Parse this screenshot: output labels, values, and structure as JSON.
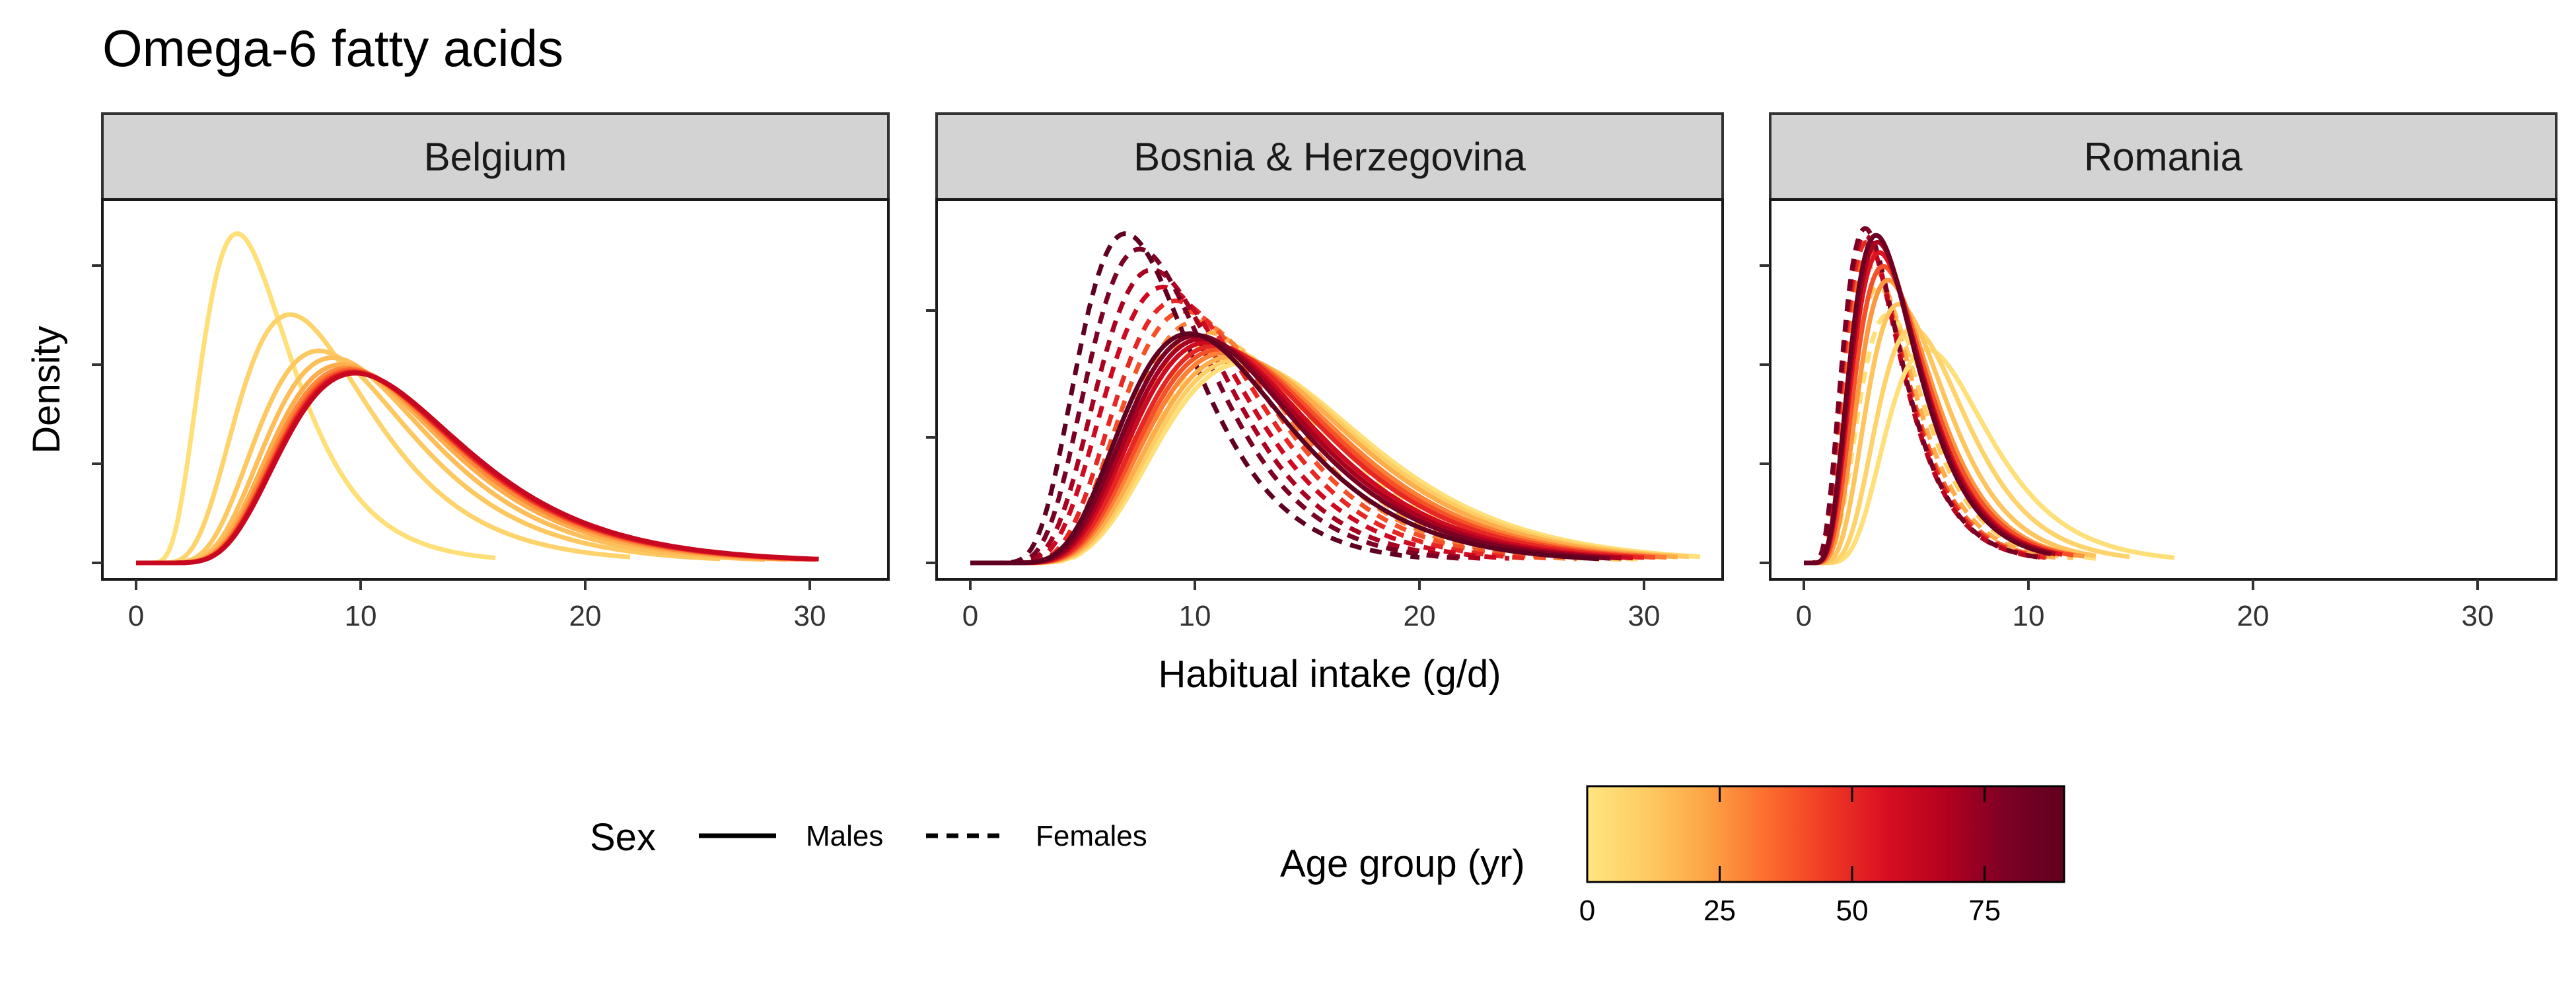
{
  "chart_data": {
    "type": "line",
    "title": "Omega-6 fatty acids",
    "xlabel": "Habitual intake (g/d)",
    "ylabel": "Density",
    "xlim": [
      -1.5,
      33.5
    ],
    "x_ticks": [
      0,
      10,
      20,
      30
    ],
    "facets": [
      "Belgium",
      "Bosnia & Herzegovina",
      "Romania"
    ],
    "grid": false,
    "legend": {
      "sex_title": "Sex",
      "sex_items": [
        {
          "label": "Males",
          "linetype": "solid"
        },
        {
          "label": "Females",
          "linetype": "dashed"
        }
      ],
      "age_title": "Age group (yr)",
      "age_ticks": [
        0,
        25,
        50,
        75
      ],
      "age_range": [
        0,
        90
      ],
      "age_colors": [
        "#ffe680",
        "#fecb62",
        "#fda446",
        "#fc6e2e",
        "#f03a24",
        "#d90f22",
        "#b5011f",
        "#7d0025",
        "#600020"
      ],
      "position": "bottom"
    },
    "series": [
      {
        "facet": "Belgium",
        "sex": "Males",
        "age": 3,
        "mean": 6.0,
        "sd": 1.55,
        "xmax": 16.0,
        "rel_peak": 0.955
      },
      {
        "facet": "Belgium",
        "sex": "Males",
        "age": 8,
        "mean": 9.0,
        "sd": 1.53,
        "xmax": 22.0,
        "rel_peak": 0.72
      },
      {
        "facet": "Belgium",
        "sex": "Males",
        "age": 12,
        "mean": 10.5,
        "sd": 1.51,
        "xmax": 26.0,
        "rel_peak": 0.615
      },
      {
        "facet": "Belgium",
        "sex": "Males",
        "age": 15,
        "mean": 11.2,
        "sd": 1.5,
        "xmax": 28.0,
        "rel_peak": 0.595
      },
      {
        "facet": "Belgium",
        "sex": "Males",
        "age": 20,
        "mean": 11.7,
        "sd": 1.5,
        "xmax": 29.0,
        "rel_peak": 0.575
      },
      {
        "facet": "Belgium",
        "sex": "Males",
        "age": 28,
        "mean": 12.0,
        "sd": 1.5,
        "xmax": 29.5,
        "rel_peak": 0.565
      },
      {
        "facet": "Belgium",
        "sex": "Males",
        "age": 35,
        "mean": 12.2,
        "sd": 1.5,
        "xmax": 30.0,
        "rel_peak": 0.56
      },
      {
        "facet": "Belgium",
        "sex": "Males",
        "age": 45,
        "mean": 12.3,
        "sd": 1.5,
        "xmax": 30.2,
        "rel_peak": 0.555
      },
      {
        "facet": "Belgium",
        "sex": "Males",
        "age": 55,
        "mean": 12.4,
        "sd": 1.5,
        "xmax": 30.3,
        "rel_peak": 0.552
      },
      {
        "facet": "Belgium",
        "sex": "Males",
        "age": 62,
        "mean": 12.5,
        "sd": 1.5,
        "xmax": 30.4,
        "rel_peak": 0.55
      },
      {
        "facet": "Bosnia & Herzegovina",
        "sex": "Males",
        "age": 3,
        "mean": 15.0,
        "sd": 1.45,
        "xmax": 32.5,
        "rel_peak": 0.58
      },
      {
        "facet": "Bosnia & Herzegovina",
        "sex": "Males",
        "age": 10,
        "mean": 14.7,
        "sd": 1.45,
        "xmax": 32.0,
        "rel_peak": 0.59
      },
      {
        "facet": "Bosnia & Herzegovina",
        "sex": "Males",
        "age": 20,
        "mean": 14.4,
        "sd": 1.45,
        "xmax": 31.5,
        "rel_peak": 0.6
      },
      {
        "facet": "Bosnia & Herzegovina",
        "sex": "Males",
        "age": 30,
        "mean": 14.0,
        "sd": 1.45,
        "xmax": 31.0,
        "rel_peak": 0.61
      },
      {
        "facet": "Bosnia & Herzegovina",
        "sex": "Males",
        "age": 40,
        "mean": 13.7,
        "sd": 1.45,
        "xmax": 30.5,
        "rel_peak": 0.62
      },
      {
        "facet": "Bosnia & Herzegovina",
        "sex": "Males",
        "age": 50,
        "mean": 13.4,
        "sd": 1.45,
        "xmax": 30.0,
        "rel_peak": 0.63
      },
      {
        "facet": "Bosnia & Herzegovina",
        "sex": "Males",
        "age": 60,
        "mean": 13.0,
        "sd": 1.45,
        "xmax": 29.5,
        "rel_peak": 0.64
      },
      {
        "facet": "Bosnia & Herzegovina",
        "sex": "Males",
        "age": 70,
        "mean": 12.7,
        "sd": 1.45,
        "xmax": 29.0,
        "rel_peak": 0.65
      },
      {
        "facet": "Bosnia & Herzegovina",
        "sex": "Males",
        "age": 80,
        "mean": 12.4,
        "sd": 1.45,
        "xmax": 28.5,
        "rel_peak": 0.66
      },
      {
        "facet": "Bosnia & Herzegovina",
        "sex": "Males",
        "age": 90,
        "mean": 12.0,
        "sd": 1.45,
        "xmax": 28.0,
        "rel_peak": 0.665
      },
      {
        "facet": "Bosnia & Herzegovina",
        "sex": "Females",
        "age": 3,
        "mean": 13.5,
        "sd": 1.4,
        "xmax": 30.0,
        "rel_peak": 0.62
      },
      {
        "facet": "Bosnia & Herzegovina",
        "sex": "Females",
        "age": 10,
        "mean": 13.0,
        "sd": 1.4,
        "xmax": 29.0,
        "rel_peak": 0.645
      },
      {
        "facet": "Bosnia & Herzegovina",
        "sex": "Females",
        "age": 20,
        "mean": 12.5,
        "sd": 1.41,
        "xmax": 28.0,
        "rel_peak": 0.67
      },
      {
        "facet": "Bosnia & Herzegovina",
        "sex": "Females",
        "age": 30,
        "mean": 12.0,
        "sd": 1.41,
        "xmax": 27.0,
        "rel_peak": 0.7
      },
      {
        "facet": "Bosnia & Herzegovina",
        "sex": "Females",
        "age": 40,
        "mean": 11.5,
        "sd": 1.42,
        "xmax": 26.0,
        "rel_peak": 0.73
      },
      {
        "facet": "Bosnia & Herzegovina",
        "sex": "Females",
        "age": 50,
        "mean": 11.0,
        "sd": 1.42,
        "xmax": 25.0,
        "rel_peak": 0.76
      },
      {
        "facet": "Bosnia & Herzegovina",
        "sex": "Females",
        "age": 60,
        "mean": 10.4,
        "sd": 1.43,
        "xmax": 24.0,
        "rel_peak": 0.8
      },
      {
        "facet": "Bosnia & Herzegovina",
        "sex": "Females",
        "age": 70,
        "mean": 9.8,
        "sd": 1.43,
        "xmax": 23.0,
        "rel_peak": 0.85
      },
      {
        "facet": "Bosnia & Herzegovina",
        "sex": "Females",
        "age": 80,
        "mean": 9.2,
        "sd": 1.44,
        "xmax": 22.0,
        "rel_peak": 0.91
      },
      {
        "facet": "Bosnia & Herzegovina",
        "sex": "Females",
        "age": 90,
        "mean": 8.5,
        "sd": 1.45,
        "xmax": 20.0,
        "rel_peak": 0.955
      },
      {
        "facet": "Romania",
        "sex": "Males",
        "age": 3,
        "mean": 7.0,
        "sd": 1.5,
        "xmax": 16.5,
        "rel_peak": 0.62
      },
      {
        "facet": "Romania",
        "sex": "Males",
        "age": 8,
        "mean": 6.2,
        "sd": 1.5,
        "xmax": 14.5,
        "rel_peak": 0.68
      },
      {
        "facet": "Romania",
        "sex": "Males",
        "age": 13,
        "mean": 5.5,
        "sd": 1.52,
        "xmax": 13.0,
        "rel_peak": 0.75
      },
      {
        "facet": "Romania",
        "sex": "Males",
        "age": 25,
        "mean": 5.0,
        "sd": 1.55,
        "xmax": 12.5,
        "rel_peak": 0.82
      },
      {
        "facet": "Romania",
        "sex": "Males",
        "age": 40,
        "mean": 4.8,
        "sd": 1.57,
        "xmax": 12.0,
        "rel_peak": 0.86
      },
      {
        "facet": "Romania",
        "sex": "Males",
        "age": 55,
        "mean": 4.6,
        "sd": 1.58,
        "xmax": 11.5,
        "rel_peak": 0.9
      },
      {
        "facet": "Romania",
        "sex": "Males",
        "age": 70,
        "mean": 4.5,
        "sd": 1.58,
        "xmax": 11.2,
        "rel_peak": 0.93
      },
      {
        "facet": "Romania",
        "sex": "Males",
        "age": 85,
        "mean": 4.4,
        "sd": 1.58,
        "xmax": 11.0,
        "rel_peak": 0.95
      },
      {
        "facet": "Romania",
        "sex": "Females",
        "age": 3,
        "mean": 5.0,
        "sd": 1.55,
        "xmax": 13.0,
        "rel_peak": 0.72
      },
      {
        "facet": "Romania",
        "sex": "Females",
        "age": 10,
        "mean": 4.5,
        "sd": 1.57,
        "xmax": 12.0,
        "rel_peak": 0.8
      },
      {
        "facet": "Romania",
        "sex": "Females",
        "age": 20,
        "mean": 4.2,
        "sd": 1.58,
        "xmax": 11.5,
        "rel_peak": 0.86
      },
      {
        "facet": "Romania",
        "sex": "Females",
        "age": 35,
        "mean": 4.0,
        "sd": 1.6,
        "xmax": 11.0,
        "rel_peak": 0.9
      },
      {
        "facet": "Romania",
        "sex": "Females",
        "age": 50,
        "mean": 3.9,
        "sd": 1.6,
        "xmax": 10.8,
        "rel_peak": 0.93
      },
      {
        "facet": "Romania",
        "sex": "Females",
        "age": 65,
        "mean": 3.8,
        "sd": 1.6,
        "xmax": 10.5,
        "rel_peak": 0.95
      },
      {
        "facet": "Romania",
        "sex": "Females",
        "age": 80,
        "mean": 3.8,
        "sd": 1.6,
        "xmax": 10.5,
        "rel_peak": 0.97
      }
    ]
  }
}
